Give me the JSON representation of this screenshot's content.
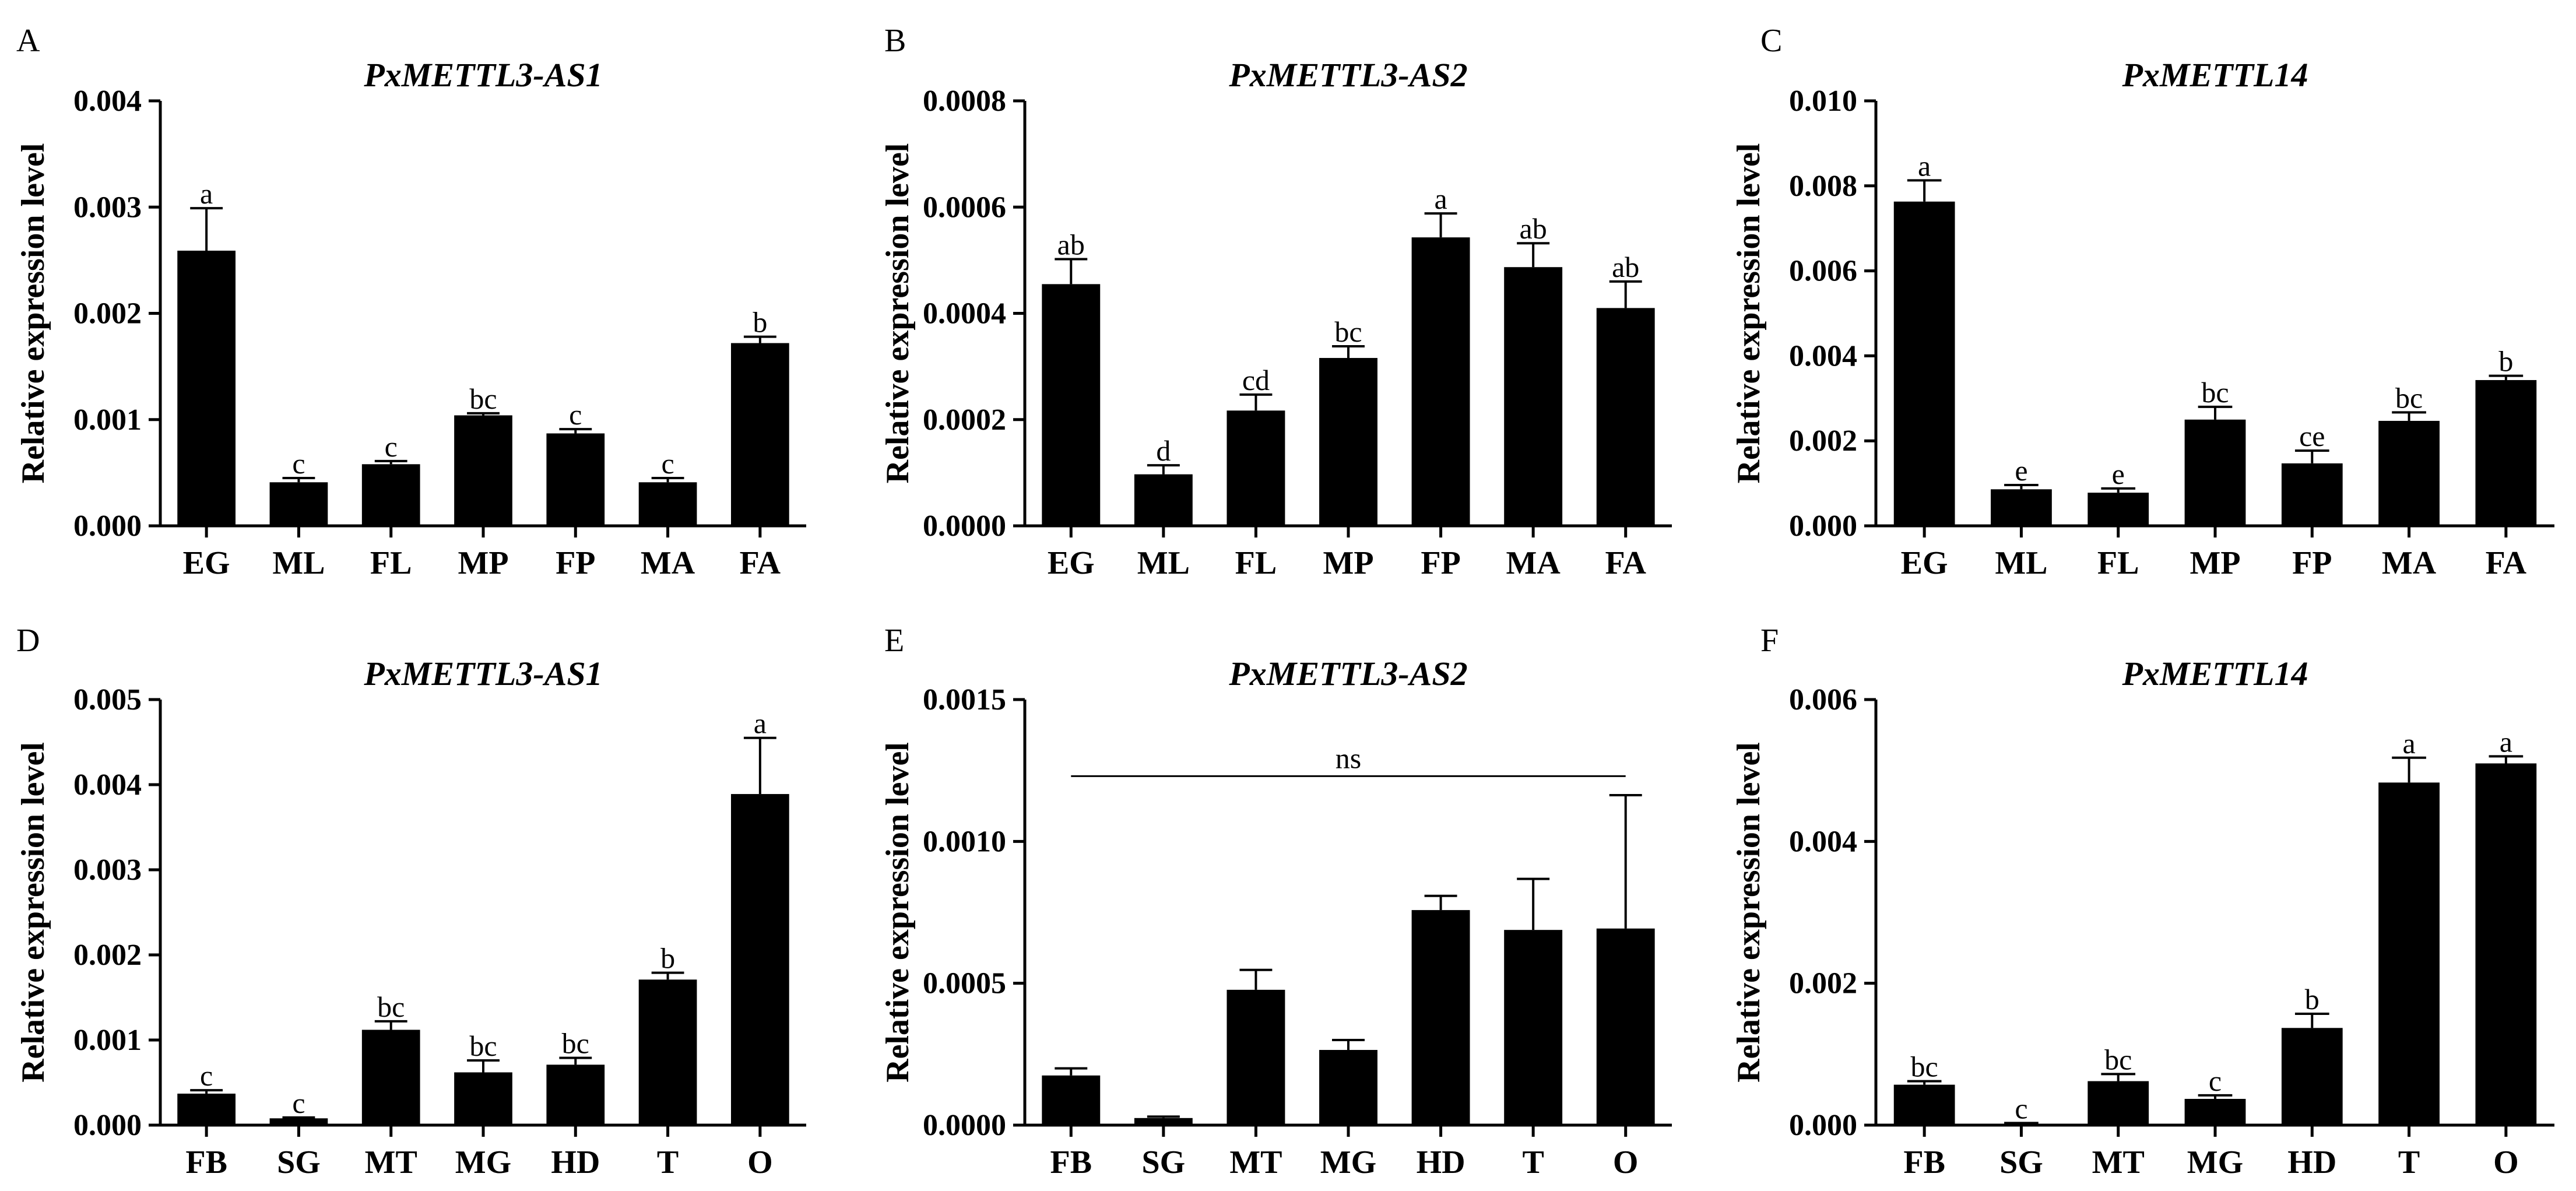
{
  "figure": {
    "background": "#ffffff",
    "bar_color": "#000000"
  },
  "chart_data": [
    {
      "panel": "A",
      "type": "bar",
      "title": "PxMETTL3-AS1",
      "xlabel": "",
      "ylabel": "Relative  expression level",
      "categories": [
        "EG",
        "ML",
        "FL",
        "MP",
        "FP",
        "MA",
        "FA"
      ],
      "values": [
        0.00259,
        0.00041,
        0.00058,
        0.00104,
        0.00087,
        0.00041,
        0.00172
      ],
      "errors": [
        0.0004,
        4e-05,
        3e-05,
        2e-05,
        4e-05,
        4e-05,
        6e-05
      ],
      "significance": [
        "a",
        "c",
        "c",
        "bc",
        "c",
        "c",
        "b"
      ],
      "ylim": [
        0,
        0.004
      ],
      "yticks": [
        0,
        0.001,
        0.002,
        0.003,
        0.004
      ],
      "ytick_labels": [
        "0.000",
        "0.001",
        "0.002",
        "0.003",
        "0.004"
      ]
    },
    {
      "panel": "B",
      "type": "bar",
      "title": "PxMETTL3-AS2",
      "xlabel": "",
      "ylabel": "Relative  expression level",
      "categories": [
        "EG",
        "ML",
        "FL",
        "MP",
        "FP",
        "MA",
        "FA"
      ],
      "values": [
        0.000455,
        9.7e-05,
        0.000217,
        0.000316,
        0.000543,
        0.000487,
        0.00041
      ],
      "errors": [
        4.7e-05,
        1.7e-05,
        3e-05,
        2.2e-05,
        4.5e-05,
        4.5e-05,
        5e-05
      ],
      "significance": [
        "ab",
        "d",
        "cd",
        "bc",
        "a",
        "ab",
        "ab"
      ],
      "ylim": [
        0,
        0.0008
      ],
      "yticks": [
        0,
        0.0002,
        0.0004,
        0.0006,
        0.0008
      ],
      "ytick_labels": [
        "0.0000",
        "0.0002",
        "0.0004",
        "0.0006",
        "0.0008"
      ]
    },
    {
      "panel": "C",
      "type": "bar",
      "title": "PxMETTL14",
      "xlabel": "",
      "ylabel": "Relative  expression level",
      "categories": [
        "EG",
        "ML",
        "FL",
        "MP",
        "FP",
        "MA",
        "FA"
      ],
      "values": [
        0.00763,
        0.00086,
        0.00078,
        0.0025,
        0.00147,
        0.00247,
        0.00343
      ],
      "errors": [
        0.0005,
        0.0001,
        0.0001,
        0.0003,
        0.0003,
        0.0002,
        0.0001
      ],
      "significance": [
        "a",
        "e",
        "e",
        "bc",
        "ce",
        "bc",
        "b"
      ],
      "ylim": [
        0,
        0.01
      ],
      "yticks": [
        0,
        0.002,
        0.004,
        0.006,
        0.008,
        0.01
      ],
      "ytick_labels": [
        "0.000",
        "0.002",
        "0.004",
        "0.006",
        "0.008",
        "0.010"
      ]
    },
    {
      "panel": "D",
      "type": "bar",
      "title": "PxMETTL3-AS1",
      "xlabel": "",
      "ylabel": "Relative  expression level",
      "categories": [
        "FB",
        "SG",
        "MT",
        "MG",
        "HD",
        "T",
        "O"
      ],
      "values": [
        0.00037,
        8e-05,
        0.00112,
        0.00062,
        0.00071,
        0.00171,
        0.00389
      ],
      "errors": [
        4e-05,
        1e-05,
        0.0001,
        0.00014,
        8e-05,
        8e-05,
        0.00066
      ],
      "significance": [
        "c",
        "c",
        "bc",
        "bc",
        "bc",
        "b",
        "a"
      ],
      "ylim": [
        0,
        0.005
      ],
      "yticks": [
        0,
        0.001,
        0.002,
        0.003,
        0.004,
        0.005
      ],
      "ytick_labels": [
        "0.000",
        "0.001",
        "0.002",
        "0.003",
        "0.004",
        "0.005"
      ]
    },
    {
      "panel": "E",
      "type": "bar",
      "title": "PxMETTL3-AS2",
      "xlabel": "",
      "ylabel": "Relative  expression level",
      "categories": [
        "FB",
        "SG",
        "MT",
        "MG",
        "HD",
        "T",
        "O"
      ],
      "values": [
        0.000175,
        2.5e-05,
        0.000477,
        0.000265,
        0.000758,
        0.000688,
        0.000693
      ],
      "errors": [
        2.5e-05,
        5e-06,
        7e-05,
        3.5e-05,
        5e-05,
        0.00018,
        0.00047
      ],
      "significance": [
        "",
        "",
        "",
        "",
        "",
        "",
        ""
      ],
      "ns_bracket": {
        "label": "ns",
        "from": "FB",
        "to": "O",
        "y": 0.00123
      },
      "ylim": [
        0,
        0.0015
      ],
      "yticks": [
        0,
        0.0005,
        0.001,
        0.0015
      ],
      "ytick_labels": [
        "0.0000",
        "0.0005",
        "0.0010",
        "0.0015"
      ]
    },
    {
      "panel": "F",
      "type": "bar",
      "title": "PxMETTL14",
      "xlabel": "",
      "ylabel": "Relative  expression level",
      "categories": [
        "FB",
        "SG",
        "MT",
        "MG",
        "HD",
        "T",
        "O"
      ],
      "values": [
        0.00057,
        2e-05,
        0.00062,
        0.00037,
        0.00137,
        0.00483,
        0.0051
      ],
      "errors": [
        5e-05,
        1e-05,
        0.0001,
        5e-05,
        0.0002,
        0.00035,
        0.0001
      ],
      "significance": [
        "bc",
        "c",
        "bc",
        "c",
        "b",
        "a",
        "a"
      ],
      "ylim": [
        0,
        0.006
      ],
      "yticks": [
        0,
        0.002,
        0.004,
        0.006
      ],
      "ytick_labels": [
        "0.000",
        "0.002",
        "0.004",
        "0.006"
      ]
    }
  ]
}
